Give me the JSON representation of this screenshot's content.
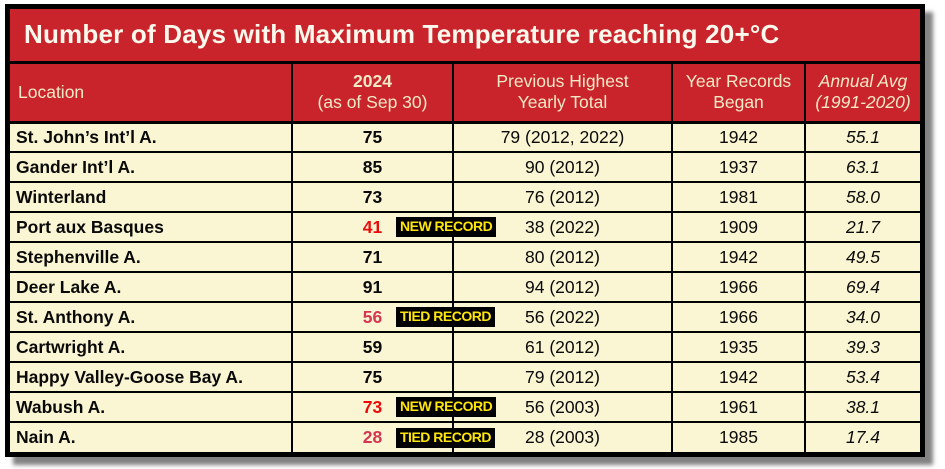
{
  "title": "Number of Days with Maximum Temperature reaching 20+°C",
  "header": {
    "location": "Location",
    "col2024_line1": "2024",
    "col2024_line2": "(as of Sep 30)",
    "prev_line1": "Previous Highest",
    "prev_line2": "Yearly Total",
    "year_line1": "Year Records",
    "year_line2": "Began",
    "avg_line1": "Annual Avg",
    "avg_line2": "(1991-2020)"
  },
  "rows": [
    {
      "location": "St. John’s Int’l A.",
      "value_2024": "75",
      "previous": "79 (2012, 2022)",
      "year_began": "1942",
      "annual_avg": "55.1"
    },
    {
      "location": "Gander Int’l A.",
      "value_2024": "85",
      "previous": "90 (2012)",
      "year_began": "1937",
      "annual_avg": "63.1"
    },
    {
      "location": "Winterland",
      "value_2024": "73",
      "previous": "76 (2012)",
      "year_began": "1981",
      "annual_avg": "58.0"
    },
    {
      "location": "Port aux Basques",
      "value_2024": "41",
      "badge": "NEW RECORD",
      "badge_type": "new",
      "previous": "38 (2022)",
      "year_began": "1909",
      "annual_avg": "21.7"
    },
    {
      "location": "Stephenville A.",
      "value_2024": "71",
      "previous": "80 (2012)",
      "year_began": "1942",
      "annual_avg": "49.5"
    },
    {
      "location": "Deer Lake A.",
      "value_2024": "91",
      "previous": "94 (2012)",
      "year_began": "1966",
      "annual_avg": "69.4"
    },
    {
      "location": "St. Anthony A.",
      "value_2024": "56",
      "badge": "TIED RECORD",
      "badge_type": "tied",
      "previous": "56 (2022)",
      "year_began": "1966",
      "annual_avg": "34.0"
    },
    {
      "location": "Cartwright A.",
      "value_2024": "59",
      "previous": "61 (2012)",
      "year_began": "1935",
      "annual_avg": "39.3"
    },
    {
      "location": "Happy Valley-Goose Bay A.",
      "value_2024": "75",
      "previous": "79 (2012)",
      "year_began": "1942",
      "annual_avg": "53.4"
    },
    {
      "location": "Wabush A.",
      "value_2024": "73",
      "badge": "NEW RECORD",
      "badge_type": "new",
      "previous": "56 (2003)",
      "year_began": "1961",
      "annual_avg": "38.1"
    },
    {
      "location": "Nain A.",
      "value_2024": "28",
      "badge": "TIED RECORD",
      "badge_type": "tied",
      "previous": "28 (2003)",
      "year_began": "1985",
      "annual_avg": "17.4"
    }
  ],
  "colors": {
    "red-bg": "#c9242b",
    "cream-bg": "#faf6d3",
    "title-text": "#fcf8ec",
    "header-text": "#f3e9c5",
    "new-record-red": "#ea0a0a",
    "tied-record-red": "#d53652",
    "badge-bg": "#000000",
    "badge-text": "#ffe60a",
    "border": "#000000"
  },
  "chart_data": {
    "type": "table",
    "title": "Number of Days with Maximum Temperature reaching 20+°C",
    "columns": [
      "Location",
      "2024 (as of Sep 30)",
      "Previous Highest Yearly Total",
      "Year Records Began",
      "Annual Avg (1991-2020)"
    ],
    "rows": [
      [
        "St. John’s Int’l A.",
        75,
        "79 (2012, 2022)",
        1942,
        55.1
      ],
      [
        "Gander Int’l A.",
        85,
        "90 (2012)",
        1937,
        63.1
      ],
      [
        "Winterland",
        73,
        "76 (2012)",
        1981,
        58.0
      ],
      [
        "Port aux Basques (NEW RECORD)",
        41,
        "38 (2022)",
        1909,
        21.7
      ],
      [
        "Stephenville A.",
        71,
        "80 (2012)",
        1942,
        49.5
      ],
      [
        "Deer Lake A.",
        91,
        "94 (2012)",
        1966,
        69.4
      ],
      [
        "St. Anthony A. (TIED RECORD)",
        56,
        "56 (2022)",
        1966,
        34.0
      ],
      [
        "Cartwright A.",
        59,
        "61 (2012)",
        1935,
        39.3
      ],
      [
        "Happy Valley-Goose Bay A.",
        75,
        "79 (2012)",
        1942,
        53.4
      ],
      [
        "Wabush A. (NEW RECORD)",
        73,
        "56 (2003)",
        1961,
        38.1
      ],
      [
        "Nain A. (TIED RECORD)",
        28,
        "28 (2003)",
        1985,
        17.4
      ]
    ]
  }
}
